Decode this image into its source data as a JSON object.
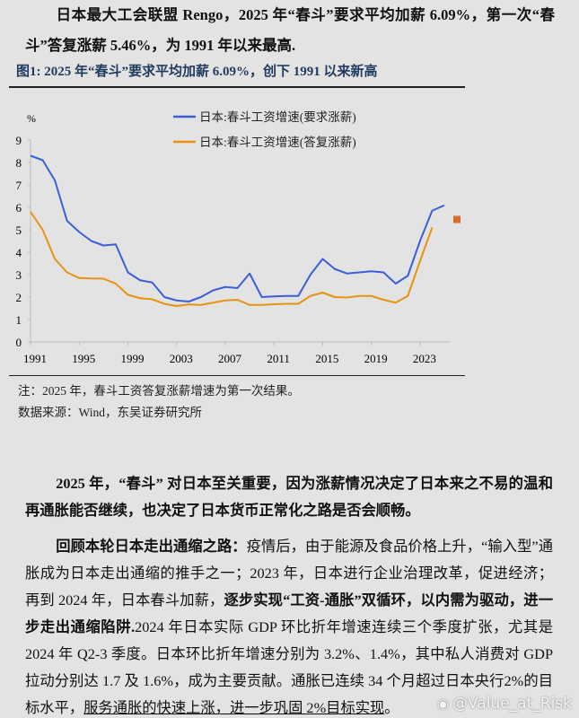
{
  "headline": "日本最大工会联盟 Rengo，2025 年“春斗”要求平均加薪 6.09%，第一次“春斗”答复涨薪 5.46%，为 1991 年以来最高.",
  "figure_title": "图1: 2025 年“春斗”要求平均加薪 6.09%，创下 1991 以来新高",
  "notes": {
    "note": "注：2025 年，春斗工资答复涨薪增速为第一次结果。",
    "source": "数据来源：Wind，东吴证券研究所"
  },
  "paragraph1": "2025 年，“春斗” 对日本至关重要，因为涨薪情况决定了日本来之不易的温和再通胀能否继续，也决定了日本货币正常化之路是否会顺畅。",
  "paragraph2": {
    "lead": "回顾本轮日本走出通缩之路：",
    "text1": "疫情后，由于能源及食品价格上升，“输入型”通胀成为日本走出通缩的推手之一；2023 年，日本进行企业治理改革，促进经济；再到 2024 年，日本春斗加薪，",
    "bold": "逐步实现“工资-通胀”双循环，以内需为驱动，进一步走出通缩陷阱.",
    "text2": "2024 年日本实际 GDP 环比折年增速连续三个季度扩张，尤其是 2024 年 Q2-3 季度。日本环比折年增速分别为 3.2%、1.4%，其中私人消费对 GDP 拉动分别达 1.7 及 1.6%，成为主要贡献。通胀已连续 34 个月超过日本央行2%的目标水平，",
    "underline": "服务通胀的快速上涨，进一步巩固 2%目标实现",
    "end": "。"
  },
  "watermark": "@Value_at_Risk",
  "chart_data": {
    "type": "line",
    "title": "",
    "ylabel": "%",
    "xlabel": "",
    "ylim": [
      0,
      9
    ],
    "yticks": [
      0,
      1,
      2,
      3,
      4,
      5,
      6,
      7,
      8,
      9
    ],
    "xticks": [
      1991,
      1995,
      1999,
      2003,
      2007,
      2011,
      2015,
      2019,
      2023
    ],
    "xlim": [
      1991,
      2025
    ],
    "grid": false,
    "legend_position": "top-center",
    "x": [
      1991,
      1992,
      1993,
      1994,
      1995,
      1996,
      1997,
      1998,
      1999,
      2000,
      2001,
      2002,
      2003,
      2004,
      2005,
      2006,
      2007,
      2008,
      2009,
      2010,
      2011,
      2012,
      2013,
      2014,
      2015,
      2016,
      2017,
      2018,
      2019,
      2020,
      2021,
      2022,
      2023,
      2024,
      2025
    ],
    "series": [
      {
        "name": "日本:春斗工资增速(要求涨薪)",
        "color": "#3a5fd6",
        "values": [
          8.3,
          8.1,
          7.2,
          5.4,
          4.9,
          4.5,
          4.3,
          4.35,
          3.1,
          2.75,
          2.65,
          2.0,
          1.85,
          1.8,
          2.0,
          2.3,
          2.45,
          2.4,
          3.05,
          2.0,
          2.03,
          2.05,
          2.05,
          3.0,
          3.7,
          3.25,
          3.05,
          3.1,
          3.15,
          3.1,
          2.6,
          2.95,
          4.5,
          5.85,
          6.09
        ]
      },
      {
        "name": "日本:春斗工资增速(答复涨薪)",
        "color": "#e8920f",
        "values": [
          5.8,
          5.0,
          3.7,
          3.1,
          2.85,
          2.83,
          2.82,
          2.6,
          2.1,
          1.95,
          1.9,
          1.7,
          1.6,
          1.67,
          1.65,
          1.75,
          1.85,
          1.88,
          1.65,
          1.65,
          1.68,
          1.7,
          1.7,
          2.05,
          2.2,
          2.0,
          1.98,
          2.05,
          2.05,
          1.88,
          1.75,
          2.05,
          3.6,
          5.1,
          null
        ]
      }
    ],
    "marker": {
      "x": 2025,
      "y": 5.46,
      "color": "#d96a2a"
    }
  }
}
